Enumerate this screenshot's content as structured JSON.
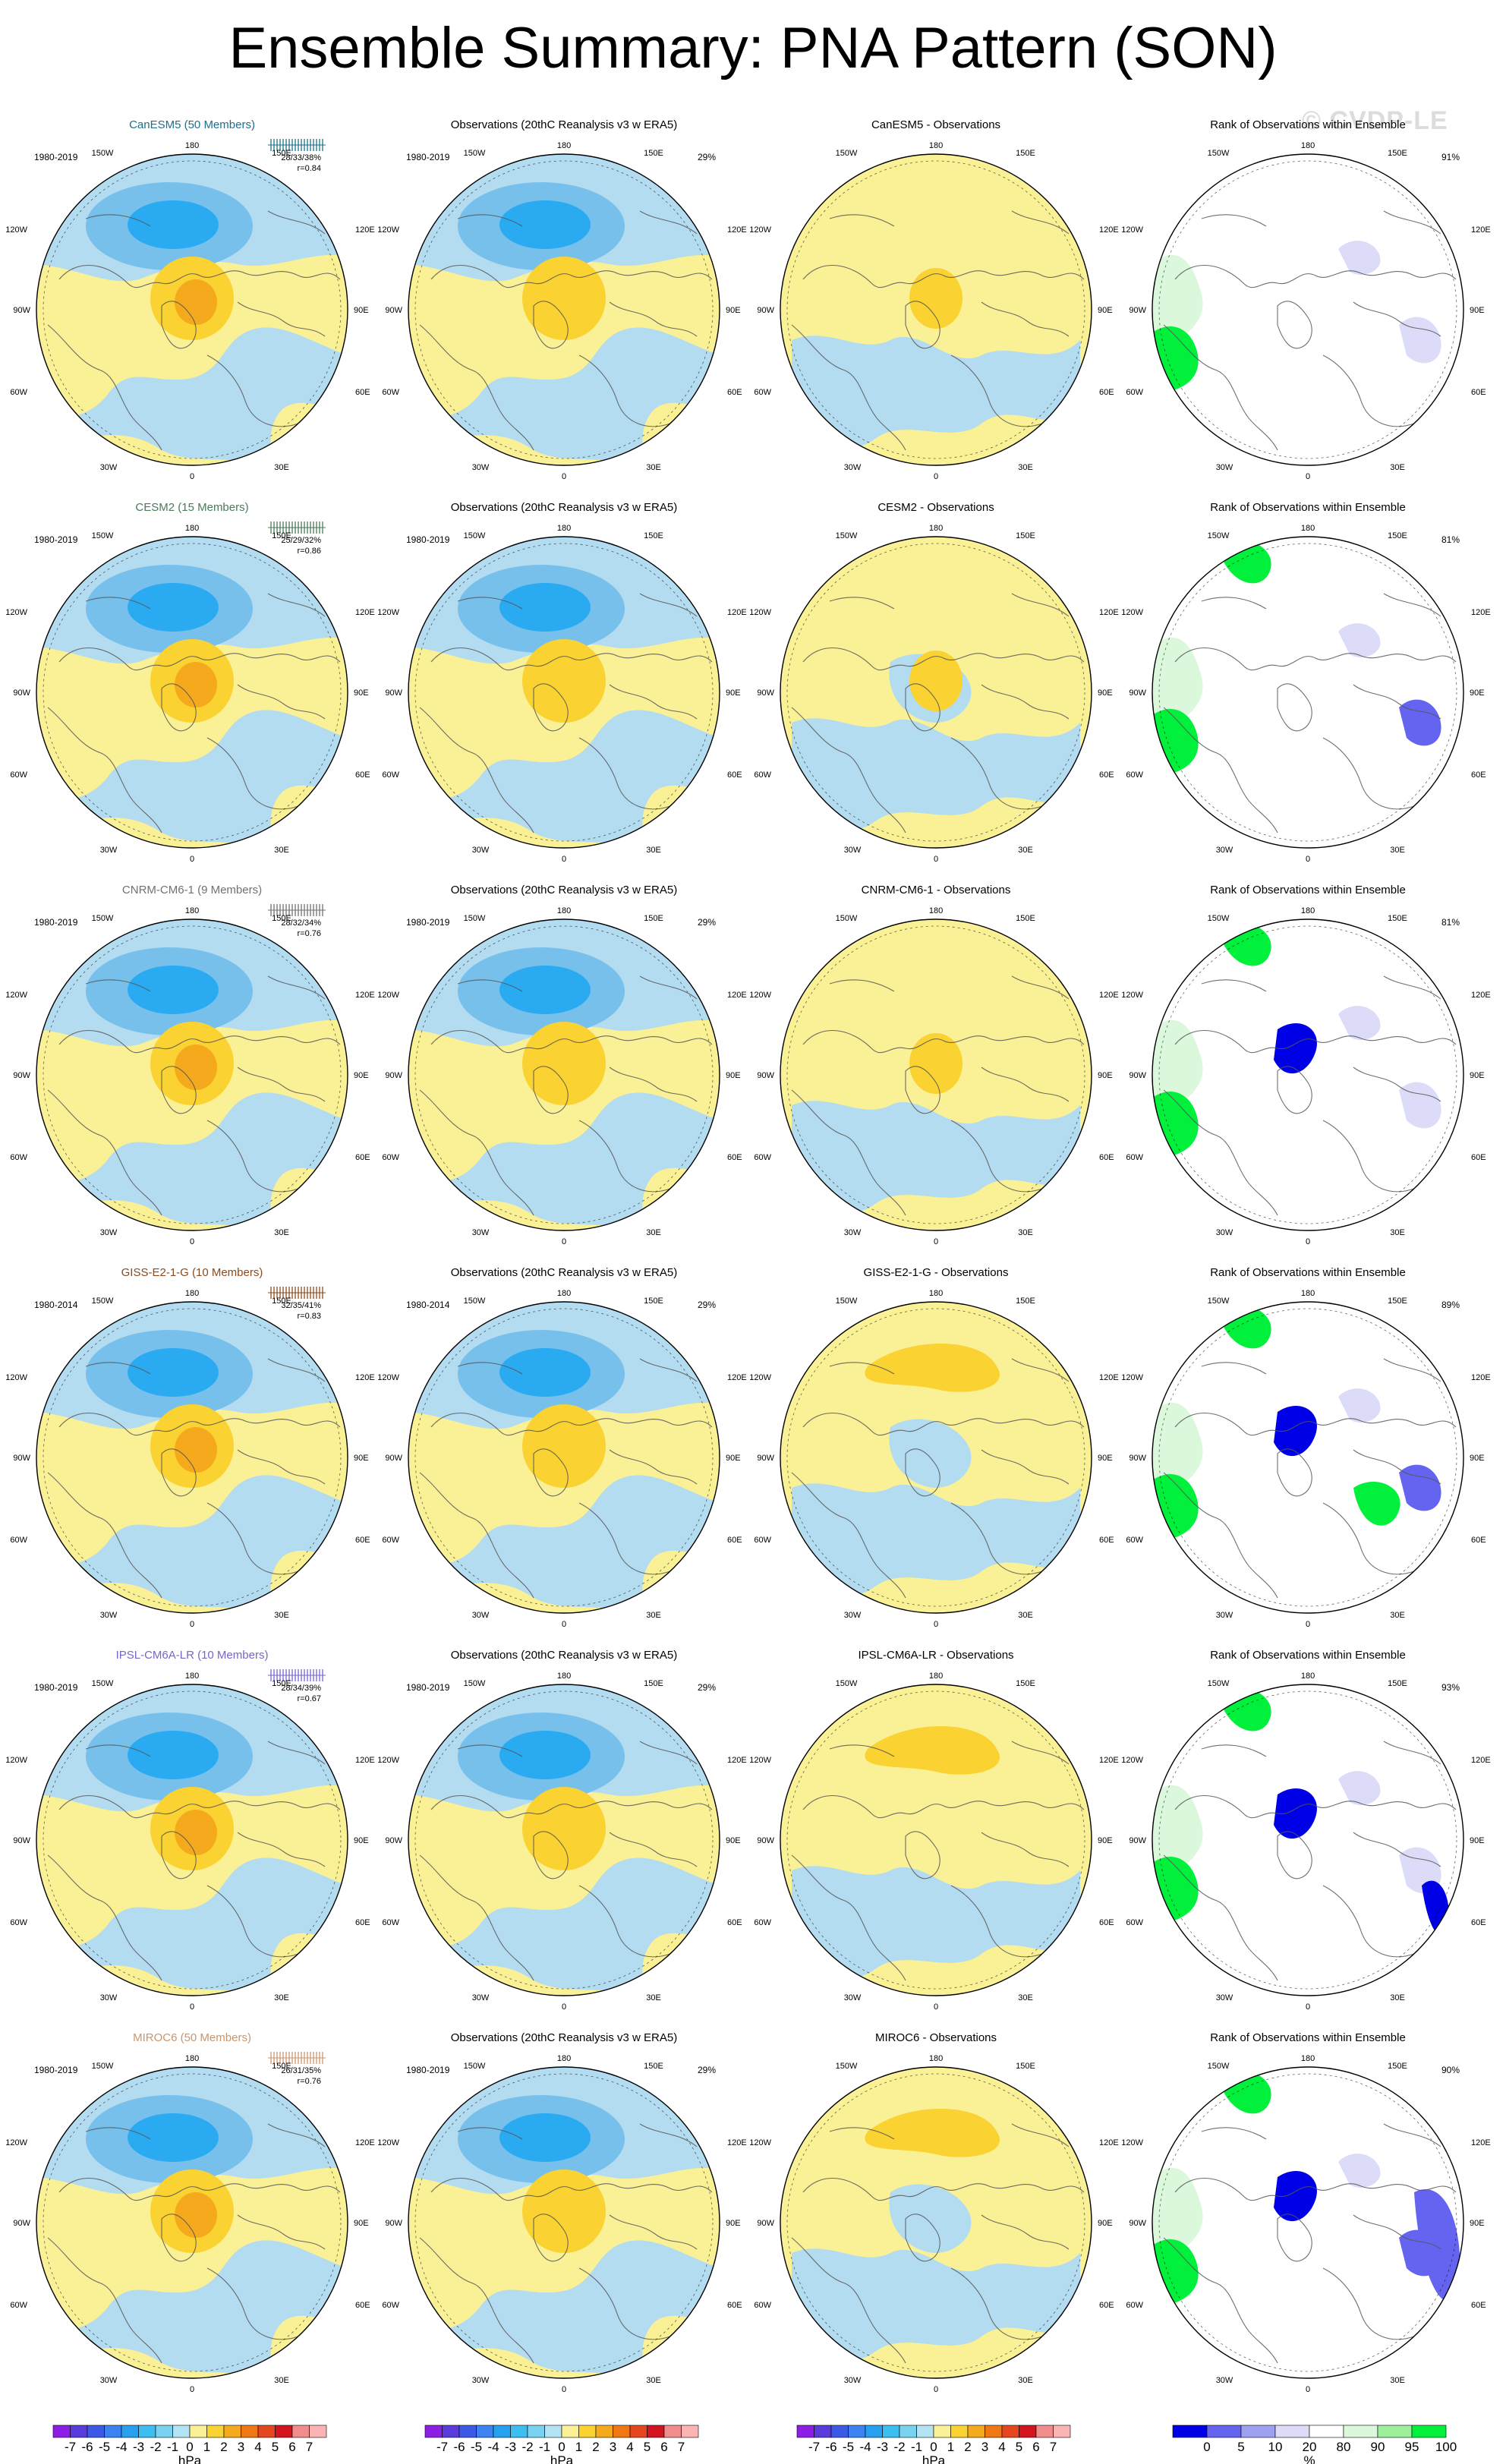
{
  "title": "Ensemble Summary: PNA Pattern (SON)",
  "watermark": "© CVDP-LE",
  "colors": {
    "land_ocean_neg1": "#b4dcf0",
    "neg2": "#78c0ec",
    "neg3": "#2aaaf0",
    "pos1": "#faf096",
    "pos2": "#fad232",
    "pos3": "#f5aa1e",
    "rank_green": "#00f03c",
    "rank_lightgreen": "#dcf8dc",
    "rank_blue": "#0000e6",
    "rank_lightblue": "#dcdcf8",
    "rank_midblue": "#6464f0"
  },
  "column_titles": {
    "obs": "Observations (20thC Reanalysis v3 w ERA5)",
    "rank": "Rank of Observations within Ensemble"
  },
  "map_labels": {
    "top": "180",
    "bottom": "0",
    "tl": "150W",
    "tr": "150E",
    "ul": "120W",
    "ur": "120E",
    "ml": "90W",
    "mr": "90E",
    "ll": "60W",
    "lr": "60E",
    "bl": "30W",
    "br": "30E"
  },
  "models": [
    {
      "name": "CanESM5 (50 Members)",
      "short": "CanESM5",
      "color": "#1e6e8c",
      "period": "1980-2019",
      "stats": "28/33/38%",
      "r": "r=0.84",
      "obs_period": "1980-2019",
      "obs_pct": "29%",
      "diff_title": "CanESM5 - Observations",
      "rank_pct": "91%"
    },
    {
      "name": "CESM2 (15 Members)",
      "short": "CESM2",
      "color": "#4a7a5a",
      "period": "1980-2019",
      "stats": "25/29/32%",
      "r": "r=0.86",
      "obs_period": "1980-2019",
      "obs_pct": "",
      "diff_title": "CESM2 - Observations",
      "rank_pct": "81%"
    },
    {
      "name": "CNRM-CM6-1 (9 Members)",
      "short": "CNRM-CM6-1",
      "color": "#707070",
      "period": "1980-2019",
      "stats": "28/32/34%",
      "r": "r=0.76",
      "obs_period": "1980-2019",
      "obs_pct": "29%",
      "diff_title": "CNRM-CM6-1 - Observations",
      "rank_pct": "81%"
    },
    {
      "name": "GISS-E2-1-G (10 Members)",
      "short": "GISS-E2-1-G",
      "color": "#8a4a1e",
      "period": "1980-2014",
      "stats": "32/35/41%",
      "r": "r=0.83",
      "obs_period": "1980-2014",
      "obs_pct": "29%",
      "diff_title": "GISS-E2-1-G - Observations",
      "rank_pct": "89%"
    },
    {
      "name": "IPSL-CM6A-LR (10 Members)",
      "short": "IPSL-CM6A-LR",
      "color": "#7a64c8",
      "period": "1980-2019",
      "stats": "28/34/39%",
      "r": "r=0.67",
      "obs_period": "1980-2019",
      "obs_pct": "29%",
      "diff_title": "IPSL-CM6A-LR - Observations",
      "rank_pct": "93%"
    },
    {
      "name": "MIROC6 (50 Members)",
      "short": "MIROC6",
      "color": "#c8966e",
      "period": "1980-2019",
      "stats": "26/31/35%",
      "r": "r=0.76",
      "obs_period": "1980-2019",
      "obs_pct": "29%",
      "diff_title": "MIROC6 - Observations",
      "rank_pct": "90%"
    }
  ],
  "chart_data": {
    "type": "heatmap",
    "title": "Ensemble Summary: PNA Pattern (SON)",
    "projection": "north polar stereographic",
    "pressure_colorbar": {
      "unit": "hPa",
      "tick_labels": [
        "-7",
        "-6",
        "-5",
        "-4",
        "-3",
        "-2",
        "-1",
        "0",
        "1",
        "2",
        "3",
        "4",
        "5",
        "6",
        "7"
      ],
      "colors": [
        "#8c1ee6",
        "#5a3cdc",
        "#3c5ae6",
        "#3c82f0",
        "#28a0f0",
        "#3cbef0",
        "#78d2f0",
        "#b4e4f4",
        "#faf096",
        "#fad232",
        "#f5aa1e",
        "#f07814",
        "#e6461e",
        "#d2141e",
        "#f08c8c",
        "#fab4b4"
      ]
    },
    "rank_colorbar": {
      "unit": "%",
      "tick_labels": [
        "0",
        "5",
        "10",
        "20",
        "80",
        "90",
        "95",
        "100"
      ],
      "colors": [
        "#0000e6",
        "#6464f0",
        "#a0a0f0",
        "#dcdcf8",
        "#ffffff",
        "#dcf8dc",
        "#9cf09c",
        "#00f03c"
      ]
    }
  }
}
